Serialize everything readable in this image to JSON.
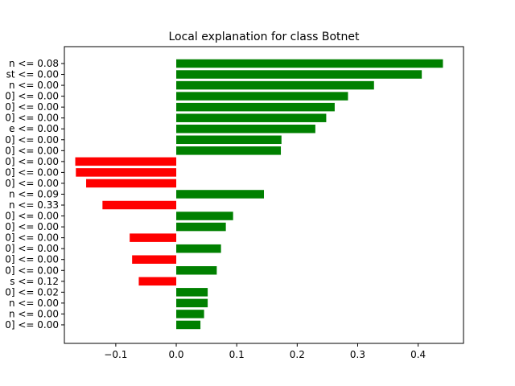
{
  "chart_data": {
    "type": "bar",
    "orientation": "horizontal",
    "title": "Local explanation for class Botnet",
    "xlabel": "",
    "ylabel": "",
    "xlim": [
      -0.185,
      0.475
    ],
    "xticks": [
      -0.1,
      0.0,
      0.1,
      0.2,
      0.3,
      0.4
    ],
    "xtick_labels": [
      "−0.1",
      "0.0",
      "0.1",
      "0.2",
      "0.3",
      "0.4"
    ],
    "grid": false,
    "legend": "none",
    "colors": {
      "positive": "#008000",
      "negative": "#ff0000"
    },
    "categories": [
      "n <= 0.08",
      "st <= 0.00",
      "n <= 0.00",
      "0] <= 0.00",
      "0] <= 0.00",
      "0] <= 0.00",
      "e <= 0.00",
      "0] <= 0.00",
      "0] <= 0.00",
      "0] <= 0.00",
      "0] <= 0.00",
      "0] <= 0.00",
      "n <= 0.09",
      "n <= 0.33",
      "0] <= 0.00",
      "0] <= 0.00",
      "0] <= 0.00",
      "0] <= 0.00",
      "0] <= 0.00",
      "0] <= 0.00",
      "s <= 0.12",
      "0] <= 0.02",
      "n <= 0.00",
      "n <= 0.00",
      "0] <= 0.00"
    ],
    "values": [
      0.441,
      0.406,
      0.327,
      0.284,
      0.262,
      0.248,
      0.23,
      0.174,
      0.173,
      -0.167,
      -0.166,
      -0.149,
      0.145,
      -0.122,
      0.094,
      0.082,
      -0.077,
      0.074,
      -0.073,
      0.067,
      -0.062,
      0.052,
      0.052,
      0.046,
      0.04
    ]
  }
}
